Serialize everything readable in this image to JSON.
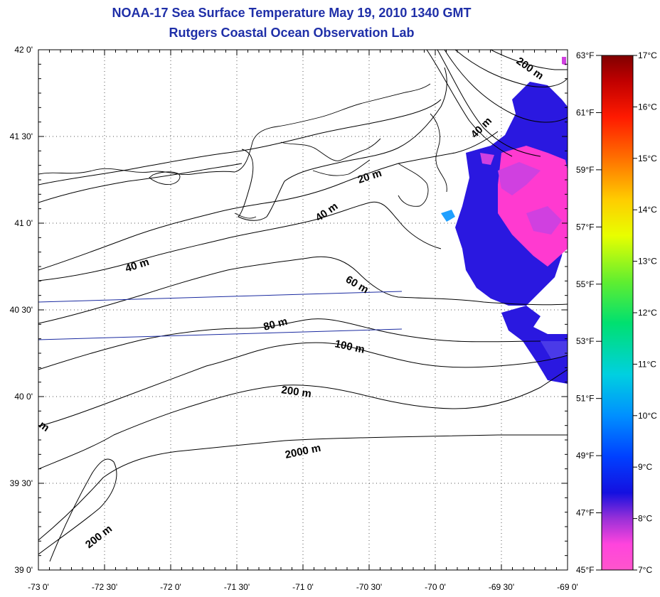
{
  "header": {
    "title": "NOAA-17 Sea Surface Temperature May 19, 2010 1340 GMT",
    "subtitle": "Rutgers Coastal Ocean Observation Lab"
  },
  "map": {
    "lon_range": [
      -73.0,
      -69.0
    ],
    "lat_range": [
      39.0,
      42.0
    ],
    "grid": "dotted",
    "lat_ticks": [
      "42 0'",
      "41 30'",
      "41 0'",
      "40 30'",
      "40 0'",
      "39 30'",
      "39 0'"
    ],
    "lon_ticks": [
      "-73 0'",
      "-72 30'",
      "-72 0'",
      "-71 30'",
      "-71 0'",
      "-70 30'",
      "-70 0'",
      "-69 30'",
      "-69 0'"
    ],
    "contour_labels": [
      "20 m",
      "40 m",
      "40 m",
      "40 m",
      "60 m",
      "80 m",
      "100 m",
      "200 m",
      "2000 m",
      "200 m",
      "200 m",
      "m"
    ],
    "contour_color": "#000000",
    "coastline_color": "#000000",
    "track_color": "#1a2aa0"
  },
  "colorbar": {
    "fahrenheit": [
      "63°F",
      "61°F",
      "59°F",
      "57°F",
      "55°F",
      "53°F",
      "51°F",
      "49°F",
      "47°F",
      "45°F"
    ],
    "celsius": [
      "17°C",
      "16°C",
      "15°C",
      "14°C",
      "13°C",
      "12°C",
      "11°C",
      "10°C",
      "9°C",
      "8°C",
      "7°C"
    ],
    "range_celsius": [
      7,
      17
    ],
    "colors": [
      "#ff55cc",
      "#9930d8",
      "#1410e0",
      "#0060ff",
      "#00c8e8",
      "#00e070",
      "#90f030",
      "#ffff00",
      "#ff9900",
      "#ff2000",
      "#e00000",
      "#800000"
    ]
  },
  "sst_patches": {
    "colors": [
      "#2a18e0",
      "#4a3ae8",
      "#ff3ad0",
      "#d040e0",
      "#20a0ff"
    ]
  }
}
